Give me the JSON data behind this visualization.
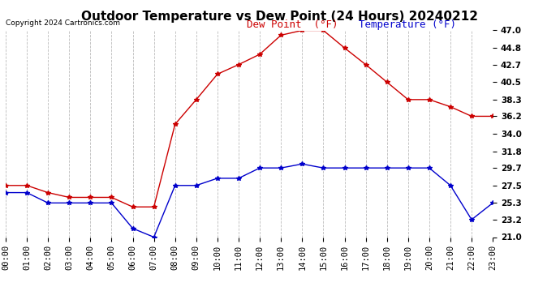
{
  "title": "Outdoor Temperature vs Dew Point (24 Hours) 20240212",
  "copyright": "Copyright 2024 Cartronics.com",
  "legend_dew": "Dew Point  (°F)",
  "legend_temp": "Temperature (°F)",
  "hours": [
    0,
    1,
    2,
    3,
    4,
    5,
    6,
    7,
    8,
    9,
    10,
    11,
    12,
    13,
    14,
    15,
    16,
    17,
    18,
    19,
    20,
    21,
    22,
    23
  ],
  "temperature": [
    26.6,
    26.6,
    25.3,
    25.3,
    25.3,
    25.3,
    22.1,
    21.0,
    27.5,
    27.5,
    28.4,
    28.4,
    29.7,
    29.7,
    30.2,
    29.7,
    29.7,
    29.7,
    29.7,
    29.7,
    29.7,
    27.5,
    23.2,
    25.3
  ],
  "dew_point": [
    27.5,
    27.5,
    26.6,
    26.0,
    26.0,
    26.0,
    24.8,
    24.8,
    35.2,
    38.3,
    41.5,
    42.7,
    44.0,
    46.4,
    47.0,
    47.0,
    44.8,
    42.7,
    40.5,
    38.3,
    38.3,
    37.4,
    36.2,
    36.2
  ],
  "temp_color": "#0000cc",
  "dew_color": "#cc0000",
  "ylim_min": 21.0,
  "ylim_max": 47.0,
  "yticks": [
    21.0,
    23.2,
    25.3,
    27.5,
    29.7,
    31.8,
    34.0,
    36.2,
    38.3,
    40.5,
    42.7,
    44.8,
    47.0
  ],
  "bg_color": "#ffffff",
  "grid_color": "#bbbbbb",
  "title_fontsize": 11,
  "tick_fontsize": 7.5,
  "legend_fontsize": 9,
  "copyright_fontsize": 6.5
}
